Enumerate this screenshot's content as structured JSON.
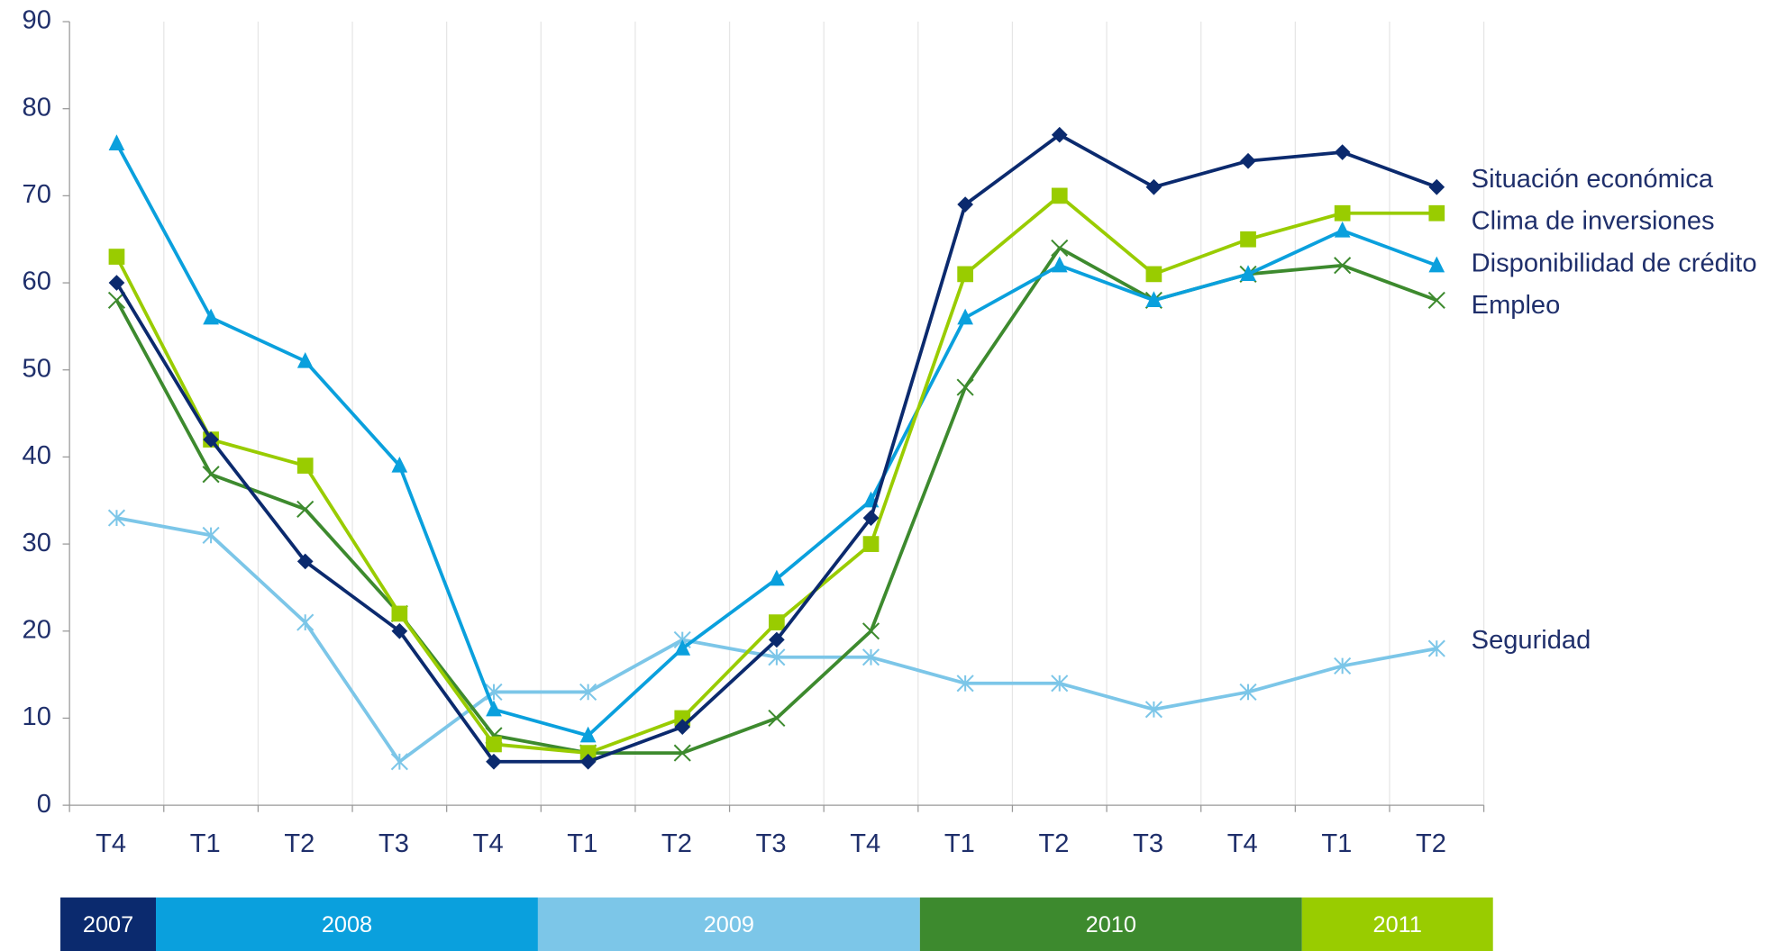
{
  "chart_data": {
    "type": "line",
    "groups": [
      {
        "label": "2007",
        "color": "#0b2a6e",
        "categories": [
          "T4"
        ]
      },
      {
        "label": "2008",
        "color": "#0aa0dd",
        "categories": [
          "T1",
          "T2",
          "T3",
          "T4"
        ]
      },
      {
        "label": "2009",
        "color": "#7cc6e8",
        "categories": [
          "T1",
          "T2",
          "T3",
          "T4"
        ]
      },
      {
        "label": "2010",
        "color": "#3d8a2e",
        "categories": [
          "T1",
          "T2",
          "T3",
          "T4"
        ]
      },
      {
        "label": "2011",
        "color": "#99cc00",
        "categories": [
          "T1",
          "T2"
        ]
      }
    ],
    "series": [
      {
        "name": "Situación económica",
        "color": "#0b2a6e",
        "marker": "diamond",
        "values": [
          60,
          42,
          28,
          20,
          5,
          5,
          9,
          19,
          33,
          69,
          77,
          71,
          74,
          75,
          71
        ]
      },
      {
        "name": "Clima de inversiones",
        "color": "#99cc00",
        "marker": "square",
        "values": [
          63,
          42,
          39,
          22,
          7,
          6,
          10,
          21,
          30,
          61,
          70,
          61,
          65,
          68,
          68
        ]
      },
      {
        "name": "Disponibilidad de crédito",
        "color": "#0aa0dd",
        "marker": "triangle",
        "values": [
          76,
          56,
          51,
          39,
          11,
          8,
          18,
          26,
          35,
          56,
          62,
          58,
          61,
          66,
          62
        ]
      },
      {
        "name": "Empleo",
        "color": "#3d8a2e",
        "marker": "x",
        "values": [
          58,
          38,
          34,
          22,
          8,
          6,
          6,
          10,
          20,
          48,
          64,
          58,
          61,
          62,
          58
        ]
      },
      {
        "name": "Seguridad",
        "color": "#7cc6e8",
        "marker": "star",
        "values": [
          33,
          31,
          21,
          5,
          13,
          13,
          19,
          17,
          17,
          14,
          14,
          11,
          13,
          16,
          18
        ]
      }
    ],
    "ylim": [
      0,
      90
    ],
    "yticks": [
      0,
      10,
      20,
      30,
      40,
      50,
      60,
      70,
      80,
      90
    ],
    "grid": true
  }
}
